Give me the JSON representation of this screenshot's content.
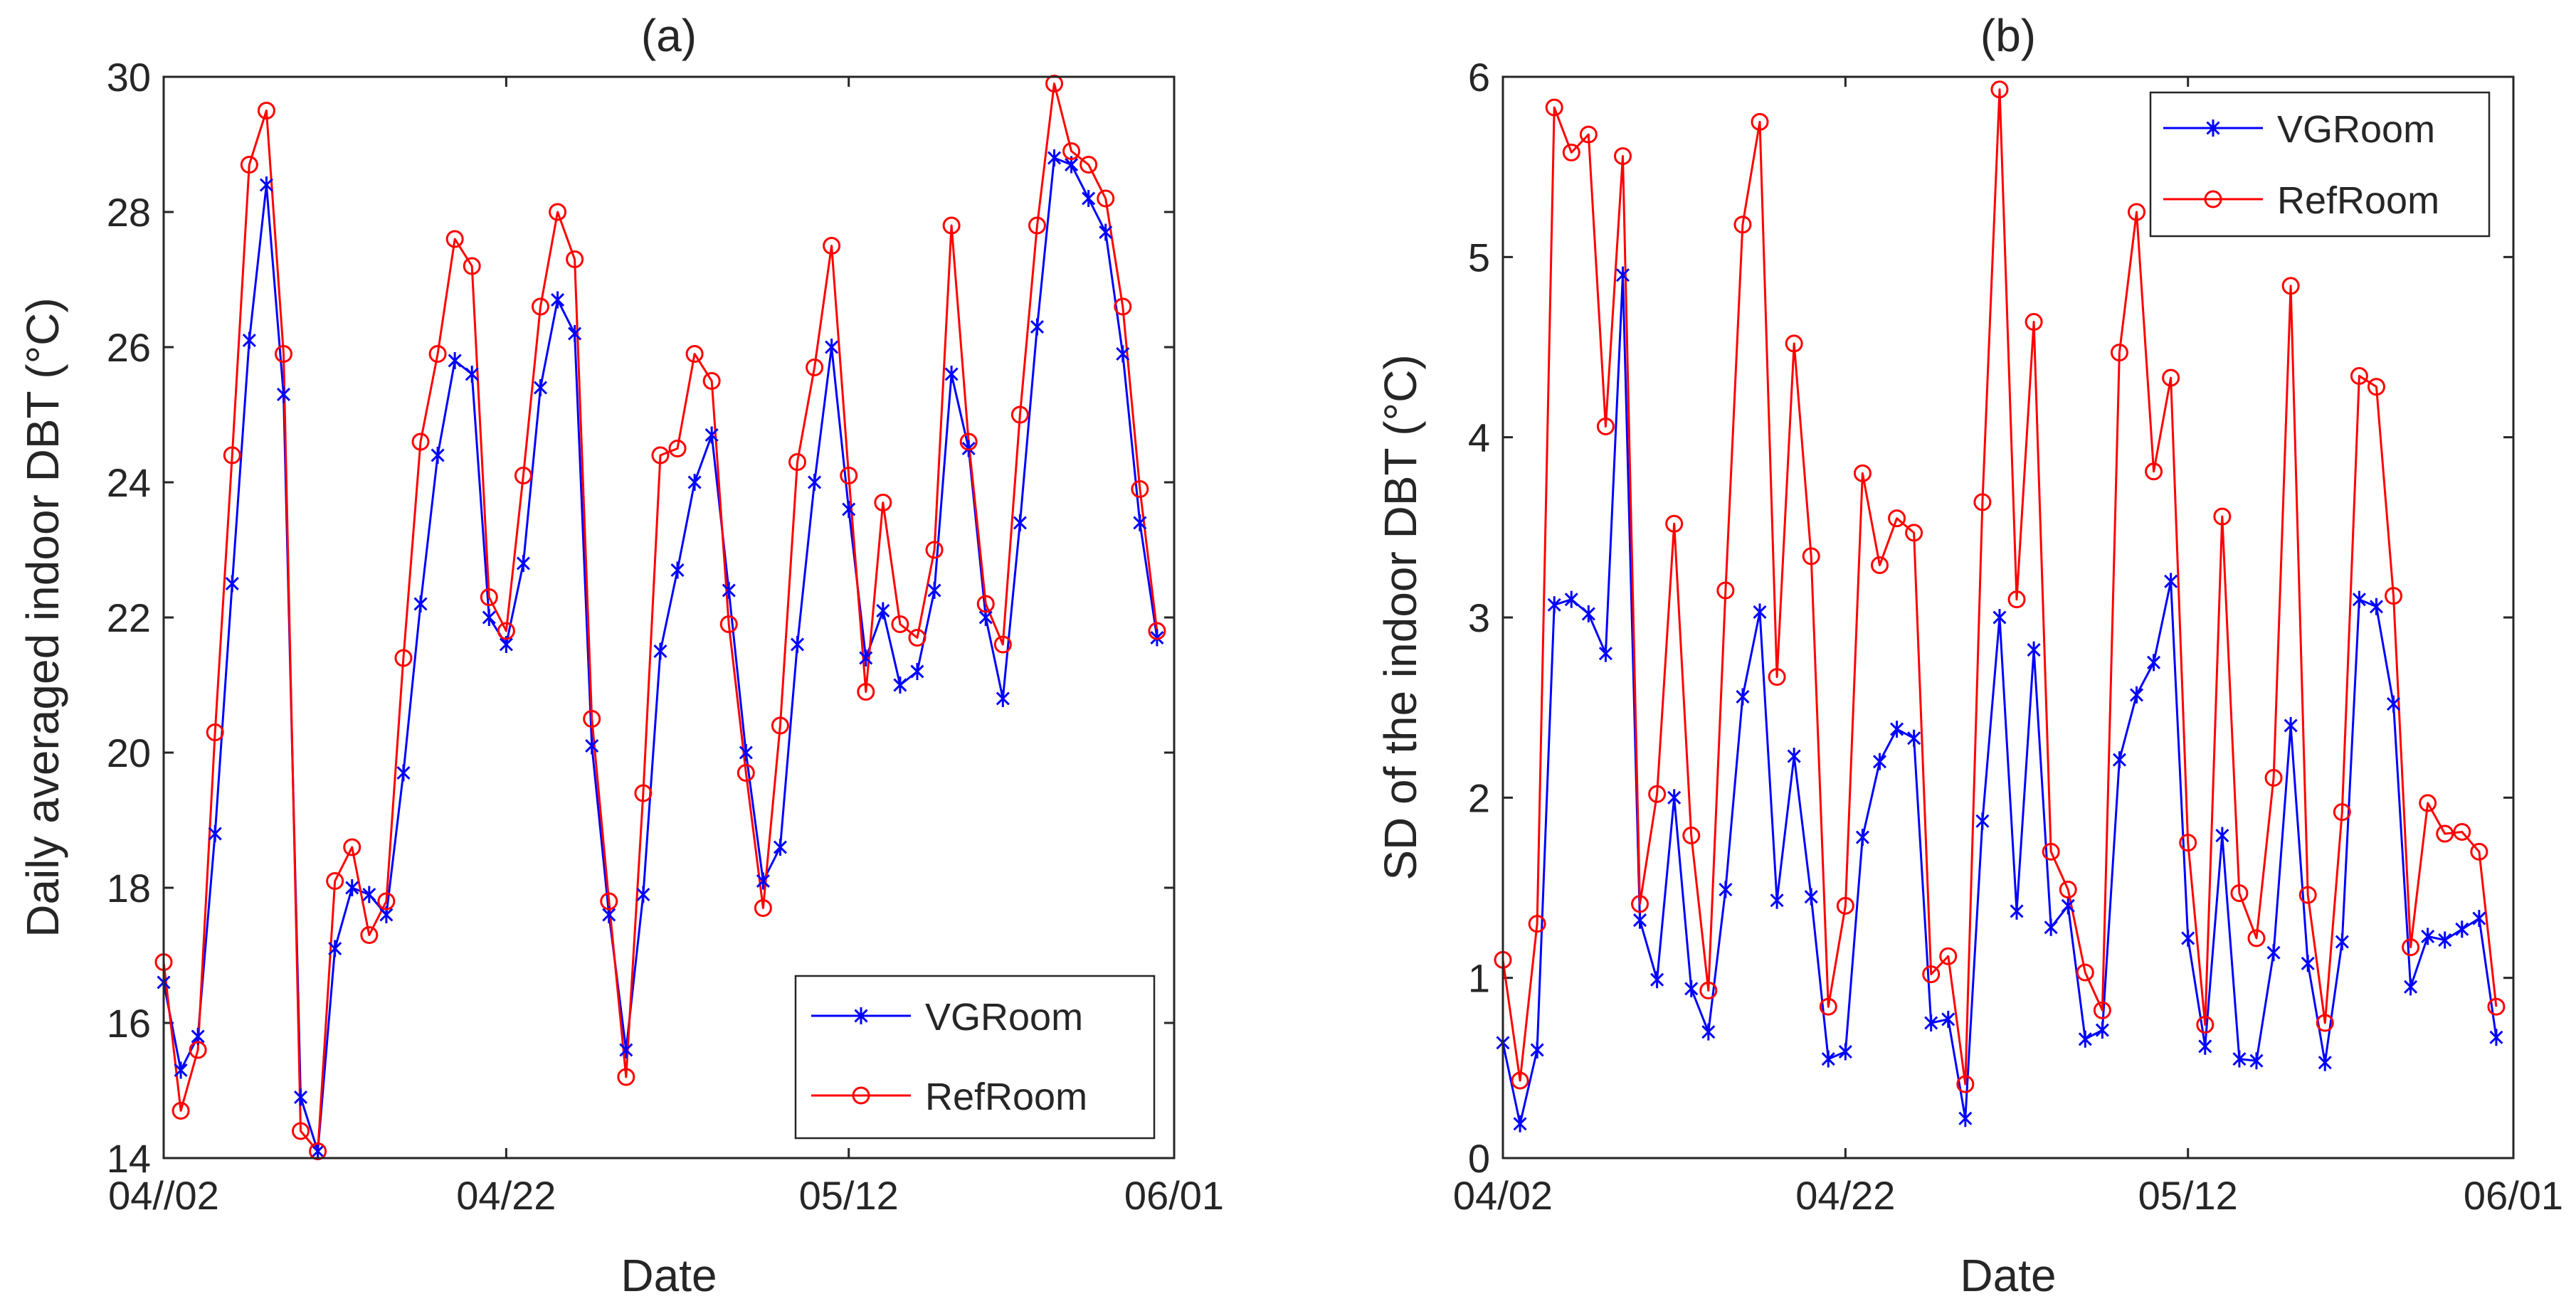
{
  "chart_data": [
    {
      "panel": "a",
      "type": "line",
      "title": "(a)",
      "xlabel": "Date",
      "ylabel": "Daily averaged indoor DBT (°C)",
      "xlim": [
        0,
        59
      ],
      "ylim": [
        14,
        30
      ],
      "xticks": [
        0,
        20,
        40,
        59
      ],
      "xticklabels": [
        "04//02",
        "04/22",
        "05/12",
        "06/01"
      ],
      "yticks": [
        14,
        16,
        18,
        20,
        22,
        24,
        26,
        28,
        30
      ],
      "yticklabels": [
        "14",
        "16",
        "18",
        "20",
        "22",
        "24",
        "26",
        "28",
        "30"
      ],
      "legend_position": "bottom-right",
      "series": [
        {
          "name": "VGRoom",
          "color": "#0000ff",
          "marker": "asterisk",
          "values": [
            16.6,
            15.3,
            15.8,
            18.8,
            22.5,
            26.1,
            28.4,
            25.3,
            14.9,
            14.1,
            17.1,
            18.0,
            17.9,
            17.6,
            19.7,
            22.2,
            24.4,
            25.8,
            25.6,
            22.0,
            21.6,
            22.8,
            25.4,
            26.7,
            26.2,
            20.1,
            17.6,
            15.6,
            17.9,
            21.5,
            22.7,
            24.0,
            24.7,
            22.4,
            20.0,
            18.1,
            18.6,
            21.6,
            24.0,
            26.0,
            23.6,
            21.4,
            22.1,
            21.0,
            21.2,
            22.4,
            25.6,
            24.5,
            22.0,
            20.8,
            23.4,
            26.3,
            28.8,
            28.7,
            28.2,
            27.7,
            25.9,
            23.4,
            21.7
          ]
        },
        {
          "name": "RefRoom",
          "color": "#ff0000",
          "marker": "circle",
          "values": [
            16.9,
            14.7,
            15.6,
            20.3,
            24.4,
            28.7,
            29.5,
            25.9,
            14.4,
            14.1,
            18.1,
            18.6,
            17.3,
            17.8,
            21.4,
            24.6,
            25.9,
            27.6,
            27.2,
            22.3,
            21.8,
            24.1,
            26.6,
            28.0,
            27.3,
            20.5,
            17.8,
            15.2,
            19.4,
            24.4,
            24.5,
            25.9,
            25.5,
            21.9,
            19.7,
            17.7,
            20.4,
            24.3,
            25.7,
            27.5,
            24.1,
            20.9,
            23.7,
            21.9,
            21.7,
            23.0,
            27.8,
            24.6,
            22.2,
            21.6,
            25.0,
            27.8,
            29.9,
            28.9,
            28.7,
            28.2,
            26.6,
            23.9,
            21.8
          ]
        }
      ]
    },
    {
      "panel": "b",
      "type": "line",
      "title": "(b)",
      "xlabel": "Date",
      "ylabel": "SD of the indoor DBT (°C)",
      "xlim": [
        0,
        59
      ],
      "ylim": [
        0,
        6
      ],
      "xticks": [
        0,
        20,
        40,
        59
      ],
      "xticklabels": [
        "04/02",
        "04/22",
        "05/12",
        "06/01"
      ],
      "yticks": [
        0,
        1,
        2,
        3,
        4,
        5,
        6
      ],
      "yticklabels": [
        "0",
        "1",
        "2",
        "3",
        "4",
        "5",
        "6"
      ],
      "legend_position": "top-right",
      "series": [
        {
          "name": "VGRoom",
          "color": "#0000ff",
          "marker": "asterisk",
          "values": [
            0.64,
            0.19,
            0.6,
            3.07,
            3.1,
            3.02,
            2.8,
            4.9,
            1.32,
            0.99,
            2.0,
            0.94,
            0.7,
            1.49,
            2.56,
            3.03,
            1.43,
            2.23,
            1.45,
            0.55,
            0.59,
            1.78,
            2.2,
            2.38,
            2.33,
            0.75,
            0.77,
            0.22,
            1.87,
            3.0,
            1.37,
            2.82,
            1.28,
            1.4,
            0.66,
            0.71,
            2.21,
            2.57,
            2.75,
            3.2,
            1.22,
            0.62,
            1.79,
            0.55,
            0.54,
            1.14,
            2.4,
            1.08,
            0.53,
            1.2,
            3.1,
            3.06,
            2.52,
            0.95,
            1.23,
            1.21,
            1.27,
            1.33,
            0.67
          ]
        },
        {
          "name": "RefRoom",
          "color": "#ff0000",
          "marker": "circle",
          "values": [
            1.1,
            0.43,
            1.3,
            5.83,
            5.58,
            5.68,
            4.06,
            5.56,
            1.41,
            2.02,
            3.52,
            1.79,
            0.93,
            3.15,
            5.18,
            5.75,
            2.67,
            4.52,
            3.34,
            0.84,
            1.4,
            3.8,
            3.29,
            3.55,
            3.47,
            1.02,
            1.12,
            0.41,
            3.64,
            5.93,
            3.1,
            4.64,
            1.7,
            1.49,
            1.03,
            0.82,
            4.47,
            5.25,
            3.81,
            4.33,
            1.75,
            0.74,
            3.56,
            1.47,
            1.22,
            2.11,
            4.84,
            1.46,
            0.75,
            1.92,
            4.34,
            4.28,
            3.12,
            1.17,
            1.97,
            1.8,
            1.81,
            1.7,
            0.84
          ]
        }
      ]
    }
  ]
}
